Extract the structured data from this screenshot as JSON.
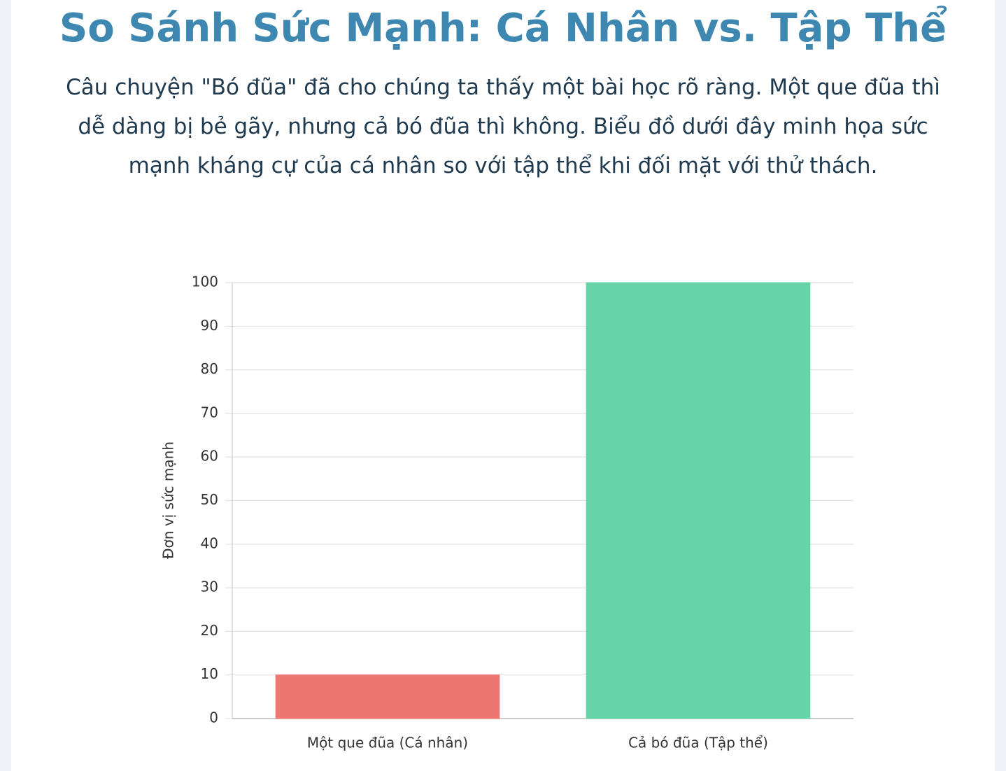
{
  "chart_data": {
    "type": "bar",
    "title": "So Sánh Sức Mạnh: Cá Nhân vs. Tập Thể",
    "subtitle": "Câu chuyện \"Bó đũa\" đã cho chúng ta thấy một bài học rõ ràng. Một que đũa thì dễ dàng bị bẻ gãy, nhưng cả bó đũa thì không. Biểu đồ dưới đây minh họa sức mạnh kháng cự của cá nhân so với tập thể khi đối mặt với thử thách.",
    "y_label": "Đơn vị sức mạnh",
    "categories": [
      "Một que đũa (Cá nhân)",
      "Cả bó đũa (Tập thể)"
    ],
    "values": [
      10,
      100
    ],
    "colors": [
      "#ee7672",
      "#66d4a6"
    ],
    "ylim": [
      0,
      100
    ],
    "yticks": [
      0,
      10,
      20,
      30,
      40,
      50,
      60,
      70,
      80,
      90,
      100
    ],
    "grid": true
  }
}
